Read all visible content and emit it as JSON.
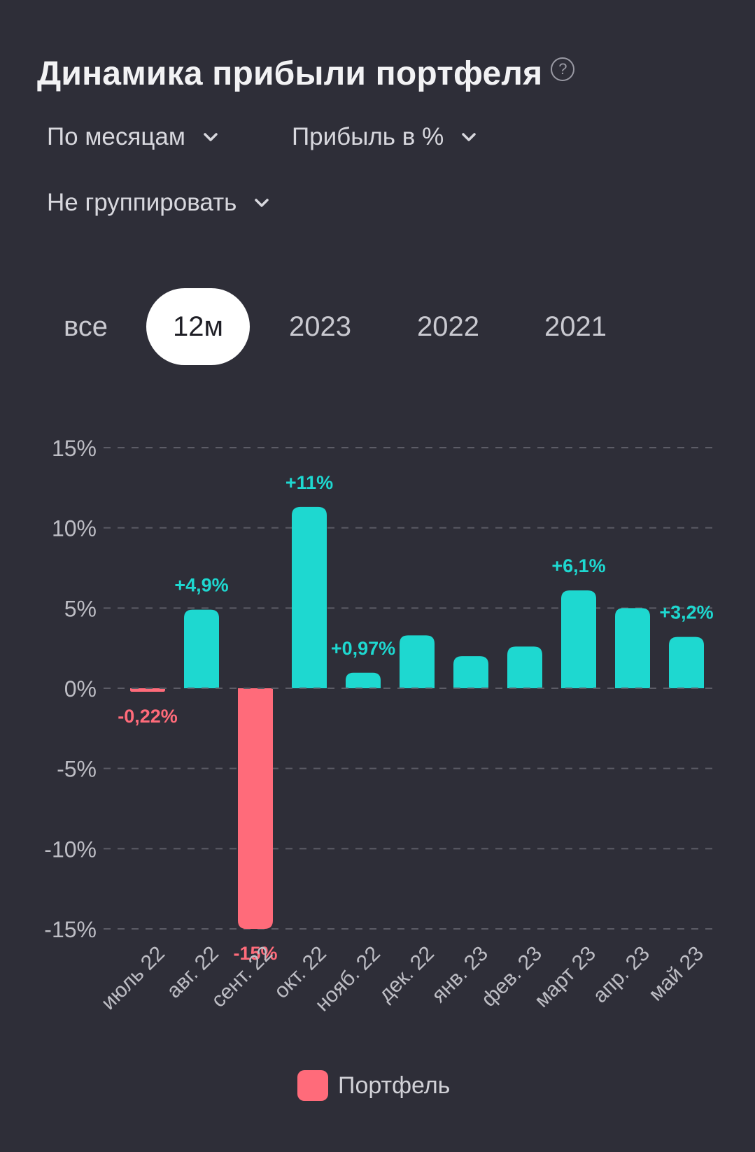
{
  "header": {
    "title": "Динамика прибыли портфеля",
    "help_icon": "?"
  },
  "filters": {
    "period_label": "По месяцам",
    "metric_label": "Прибыль в %",
    "grouping_label": "Не группировать"
  },
  "period_tabs": [
    {
      "label": "все",
      "active": false
    },
    {
      "label": "12м",
      "active": true
    },
    {
      "label": "2023",
      "active": false
    },
    {
      "label": "2022",
      "active": false
    },
    {
      "label": "2021",
      "active": false
    }
  ],
  "colors": {
    "positive": "#1ed8d0",
    "negative": "#ff6b7a",
    "grid": "#5c5c66",
    "tick": "#bdbdc4"
  },
  "chart_data": {
    "type": "bar",
    "categories": [
      "июль 22",
      "авг. 22",
      "сент. 22",
      "окт. 22",
      "нояб. 22",
      "дек. 22",
      "янв. 23",
      "фев. 23",
      "март 23",
      "апр. 23",
      "май 23"
    ],
    "series": [
      {
        "name": "Портфель",
        "values": [
          -0.22,
          4.9,
          -15,
          11.3,
          0.97,
          3.3,
          2.0,
          2.6,
          6.1,
          5.0,
          3.2
        ]
      }
    ],
    "data_labels": [
      "-0,22%",
      "+4,9%",
      "-15%",
      "+11%",
      "+0,97%",
      "",
      "",
      "",
      "+6,1%",
      "",
      "+3,2%"
    ],
    "yticks": [
      15,
      10,
      5,
      0,
      -5,
      -10,
      -15
    ],
    "ytick_labels": [
      "15%",
      "10%",
      "5%",
      "0%",
      "-5%",
      "-10%",
      "-15%"
    ],
    "ylim": [
      -15,
      15
    ],
    "grid": true,
    "legend_position": "bottom-center",
    "legend": [
      "Портфель"
    ]
  }
}
